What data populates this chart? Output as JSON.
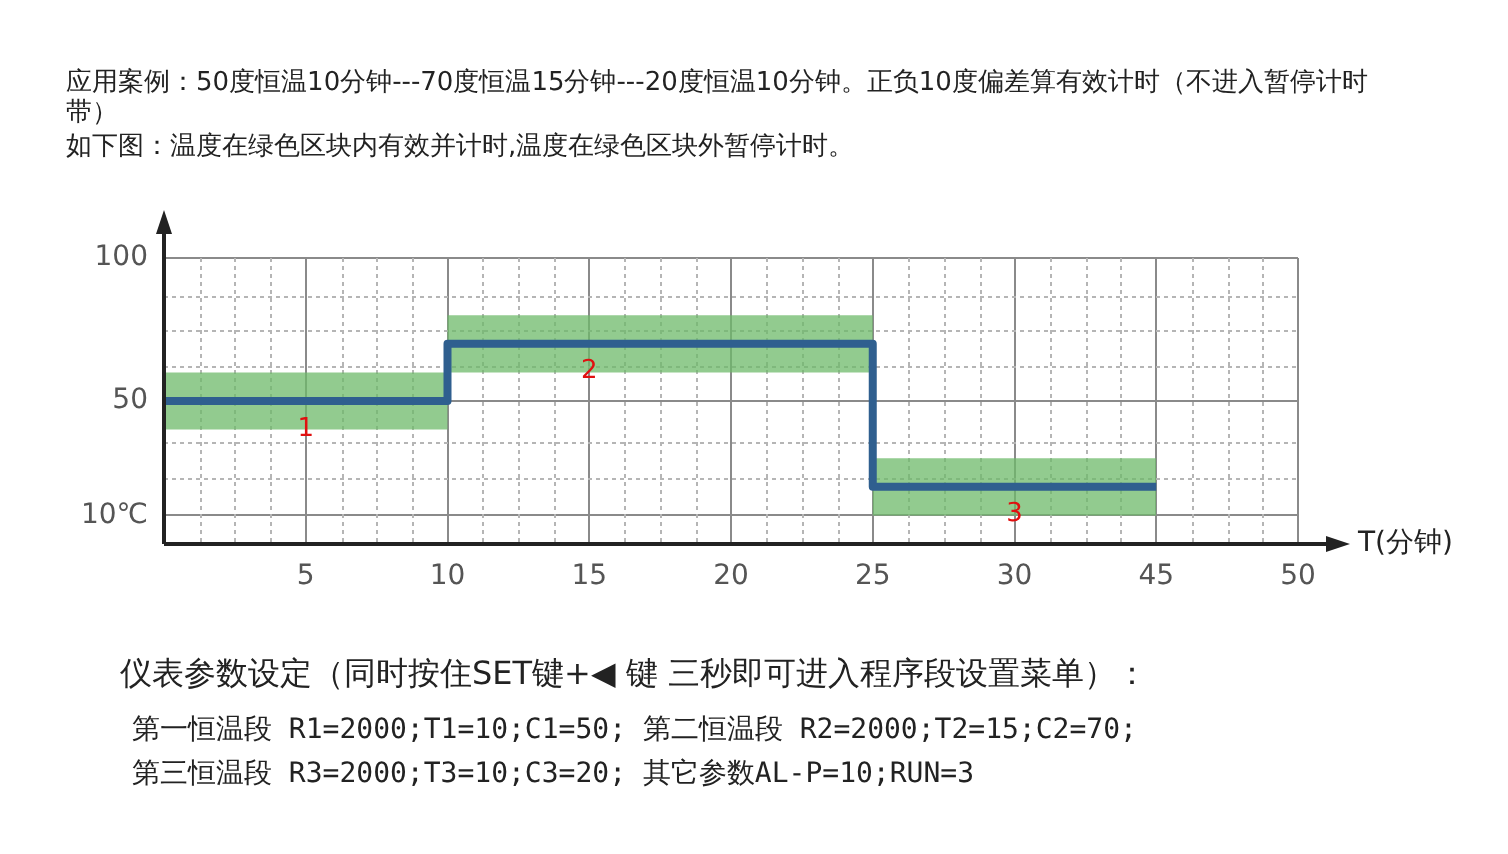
{
  "chart_data": {
    "type": "step",
    "title": "应用案例：50度恒温10分钟---70度恒温15分钟---20度恒温10分钟。正负10度偏差算有效计时（不进入暂停计时带）",
    "subtitle": "如下图：温度在绿色区块内有效并计时,温度在绿色区块外暂停计时。",
    "xlabel": "T(分钟)",
    "categories": [
      null,
      "5",
      "10",
      "15",
      "20",
      "25",
      "30",
      "45",
      "50"
    ],
    "series": [
      {
        "color": "#2f5f8f",
        "values": [
          50,
          50,
          70,
          70,
          70,
          20,
          20,
          20,
          null
        ],
        "lower": [
          40,
          40,
          60,
          60,
          60,
          10,
          10,
          10,
          null
        ],
        "upper": [
          60,
          60,
          80,
          80,
          80,
          30,
          30,
          30,
          null
        ]
      }
    ],
    "ylim": [
      0,
      100
    ],
    "yticks": [
      {
        "value": 10,
        "label": "10℃"
      },
      {
        "value": 23,
        "label": null
      },
      {
        "value": 36,
        "label": null
      },
      50,
      {
        "value": 62,
        "label": null
      },
      {
        "value": 75,
        "label": null
      },
      {
        "value": 87,
        "label": null
      },
      100
    ],
    "grid": true,
    "legend": false,
    "marker": "none",
    "line_style": "solid",
    "annotations": [
      {
        "text": "1",
        "x": "5",
        "y": 40
      },
      {
        "text": "2",
        "x": "15",
        "y": 60
      },
      {
        "text": "3",
        "x": "30",
        "y": 10
      },
      "仪表参数设定（同时按住SET键+◀ 键 三秒即可进入程序段设置菜单）：",
      "第一恒温段 R1=2000;T1=10;C1=50; 第二恒温段 R2=2000;T2=15;C2=70;",
      "第三恒温段 R3=2000;T3=10;C3=20; 其它参数AL-P=10;RUN=3"
    ]
  }
}
